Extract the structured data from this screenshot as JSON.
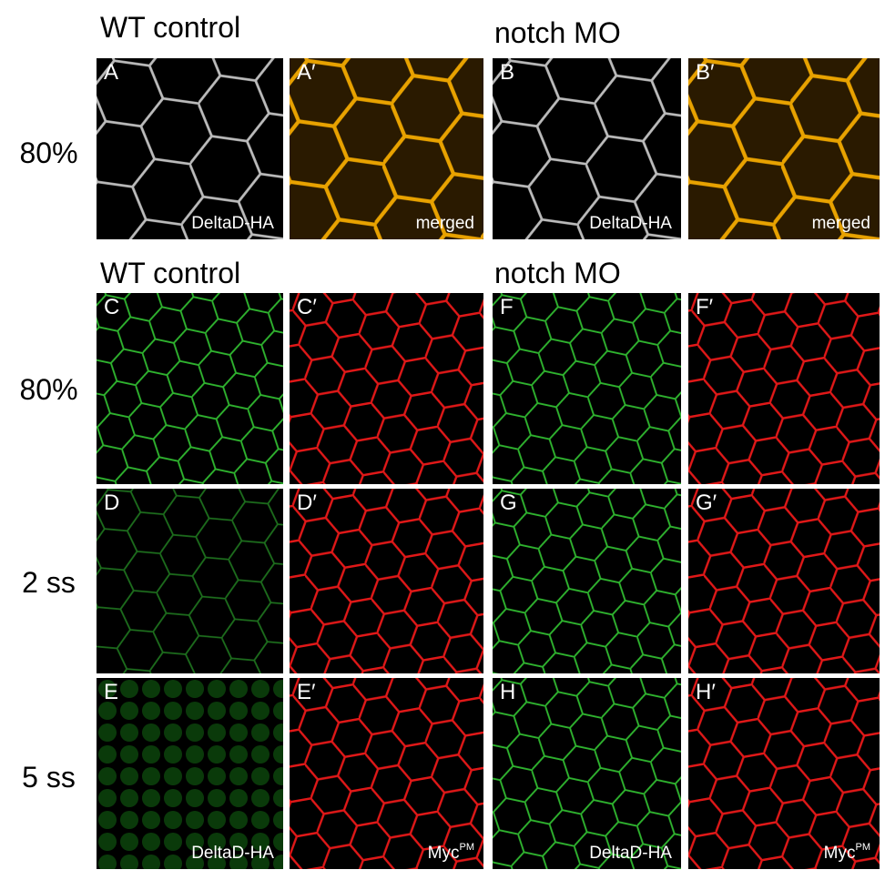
{
  "headers": {
    "top_left": "WT control",
    "top_right": "notch MO",
    "bottom_left": "WT control",
    "bottom_right": "notch MO"
  },
  "row_labels": [
    "80%",
    "80%",
    "2 ss",
    "5 ss"
  ],
  "panels": [
    {
      "letter": "A",
      "caption": "DeltaD-HA"
    },
    {
      "letter": "A′",
      "caption": "merged"
    },
    {
      "letter": "B",
      "caption": "DeltaD-HA"
    },
    {
      "letter": "B′",
      "caption": "merged"
    },
    {
      "letter": "C"
    },
    {
      "letter": "C′"
    },
    {
      "letter": "F"
    },
    {
      "letter": "F′"
    },
    {
      "letter": "D"
    },
    {
      "letter": "D′"
    },
    {
      "letter": "G"
    },
    {
      "letter": "G′"
    },
    {
      "letter": "E",
      "caption": "DeltaD-HA"
    },
    {
      "letter": "E′",
      "caption": {
        "text": "Myc",
        "superscript": "PM"
      }
    },
    {
      "letter": "H",
      "caption": "DeltaD-HA"
    },
    {
      "letter": "H′",
      "caption": {
        "text": "Myc",
        "superscript": "PM"
      }
    }
  ]
}
